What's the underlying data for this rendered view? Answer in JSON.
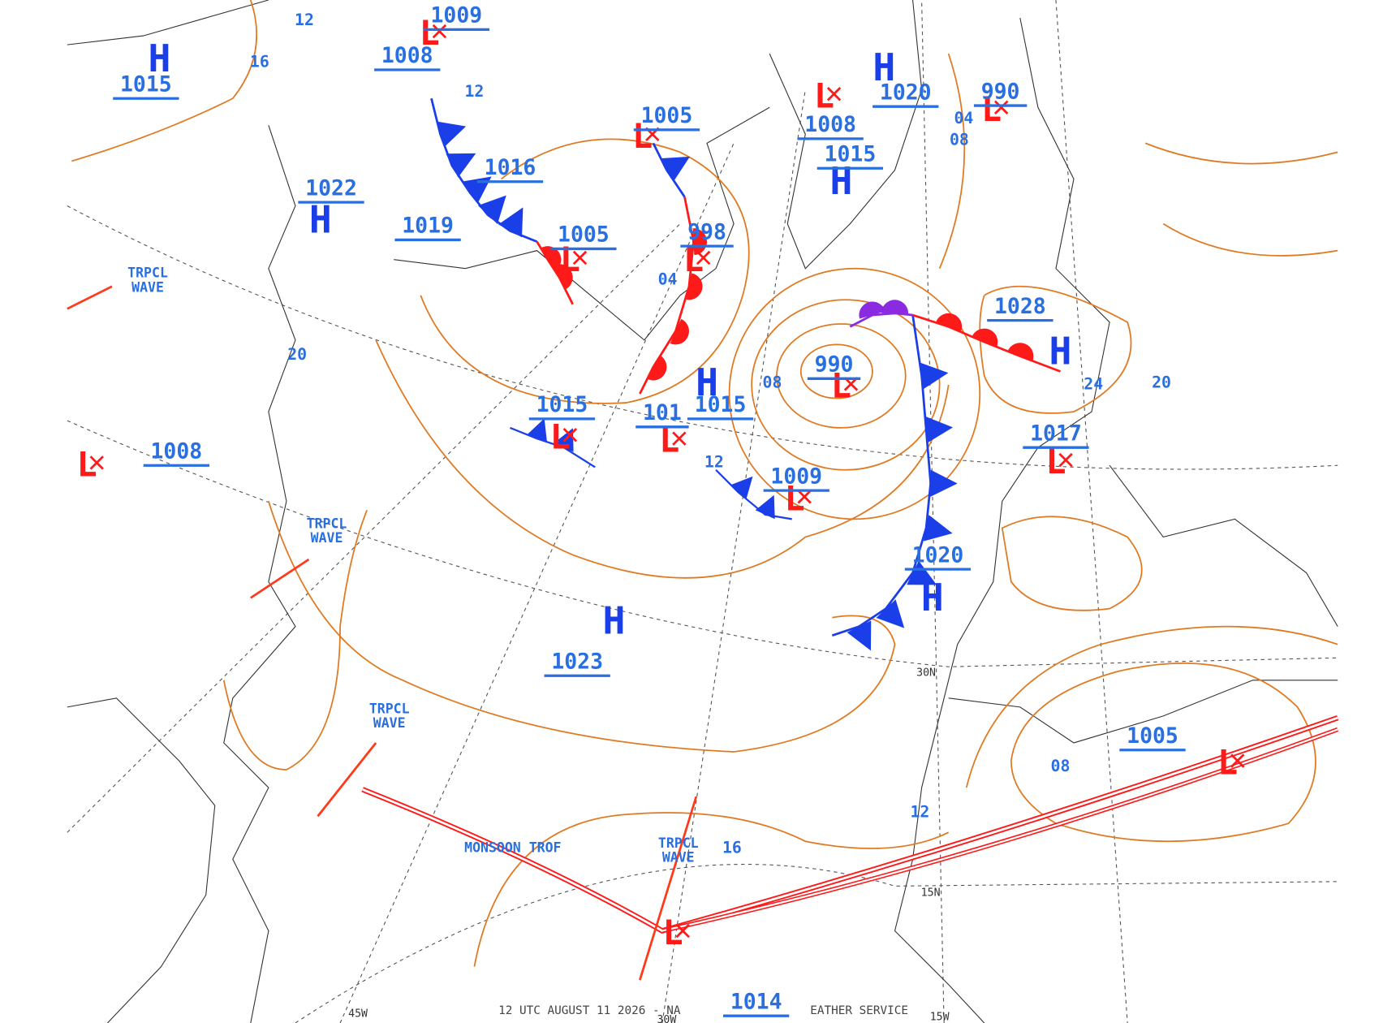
{
  "centers": [
    {
      "letter": "H",
      "pressure": "1015"
    },
    {
      "letter": "H",
      "pressure": "1022"
    },
    {
      "letter": "L",
      "pressure": "1009"
    },
    {
      "pressure": "1008"
    },
    {
      "pressure": "1019"
    },
    {
      "pressure": "1016"
    },
    {
      "letter": "L",
      "pressure": "1005"
    },
    {
      "letter": "L",
      "pressure": "1005"
    },
    {
      "letter": "L",
      "pressure": "998"
    },
    {
      "letter": "H",
      "pressure": "1020"
    },
    {
      "letter": "L",
      "pressure": "1008"
    },
    {
      "letter": "H",
      "pressure": "1015"
    },
    {
      "letter": "L",
      "pressure": "990"
    },
    {
      "letter": "H",
      "pressure": "1028"
    },
    {
      "letter": "L",
      "pressure": "990"
    },
    {
      "letter": "L",
      "pressure": "1015"
    },
    {
      "letter": "L",
      "pressure": "101"
    },
    {
      "letter": "H",
      "pressure": "1015"
    },
    {
      "letter": "L",
      "pressure": "1009"
    },
    {
      "letter": "H",
      "pressure": "1020"
    },
    {
      "letter": "H",
      "pressure": "1023"
    },
    {
      "letter": "L",
      "pressure": "1017"
    },
    {
      "letter": "L",
      "pressure": "1008"
    },
    {
      "letter": "L",
      "pressure": "1005"
    },
    {
      "letter": "L"
    },
    {
      "pressure": "1014"
    }
  ],
  "isobar_labels": [
    "12",
    "16",
    "20",
    "12",
    "04",
    "08",
    "04",
    "08",
    "24",
    "20",
    "12",
    "16",
    "08",
    "12"
  ],
  "features": [
    "TRPCL WAVE",
    "TRPCL WAVE",
    "TRPCL WAVE",
    "TRPCL WAVE",
    "MONSOON TROF"
  ],
  "grid_labels": [
    "45W",
    "30W",
    "15W",
    "30N",
    "15N"
  ],
  "footer": [
    "12 UTC AUGUST 11 2026 - NA",
    "EATHER SERVICE"
  ]
}
